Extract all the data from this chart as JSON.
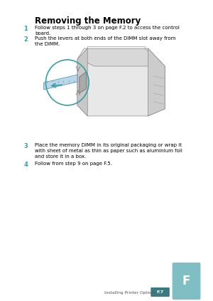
{
  "title": "Removing the Memory",
  "title_fontsize": 8.5,
  "title_bold": true,
  "title_font": "DejaVu Sans",
  "bg_color": "#ffffff",
  "text_color": "#000000",
  "step_color": "#3a9ea5",
  "tab_color": "#7fbfc4",
  "page_label_color": "#3a7a82",
  "steps": [
    {
      "num": "1",
      "text": "Follow steps 1 through 3 on page F.2 to access the control\nboard."
    },
    {
      "num": "2",
      "text": "Push the levers at both ends of the DIMM slot away from\nthe DIMM."
    },
    {
      "num": "3",
      "text": "Place the memory DIMM in its original packaging or wrap it\nwith sheet of metal as thin as paper such as aluminium foil\nand store it in a box."
    },
    {
      "num": "4",
      "text": "Follow from step 9 on page F.5."
    }
  ],
  "footer_label": "Installing Printer Options",
  "page_num": "F.7",
  "font_size": 5.0,
  "step_font_size": 6.0
}
